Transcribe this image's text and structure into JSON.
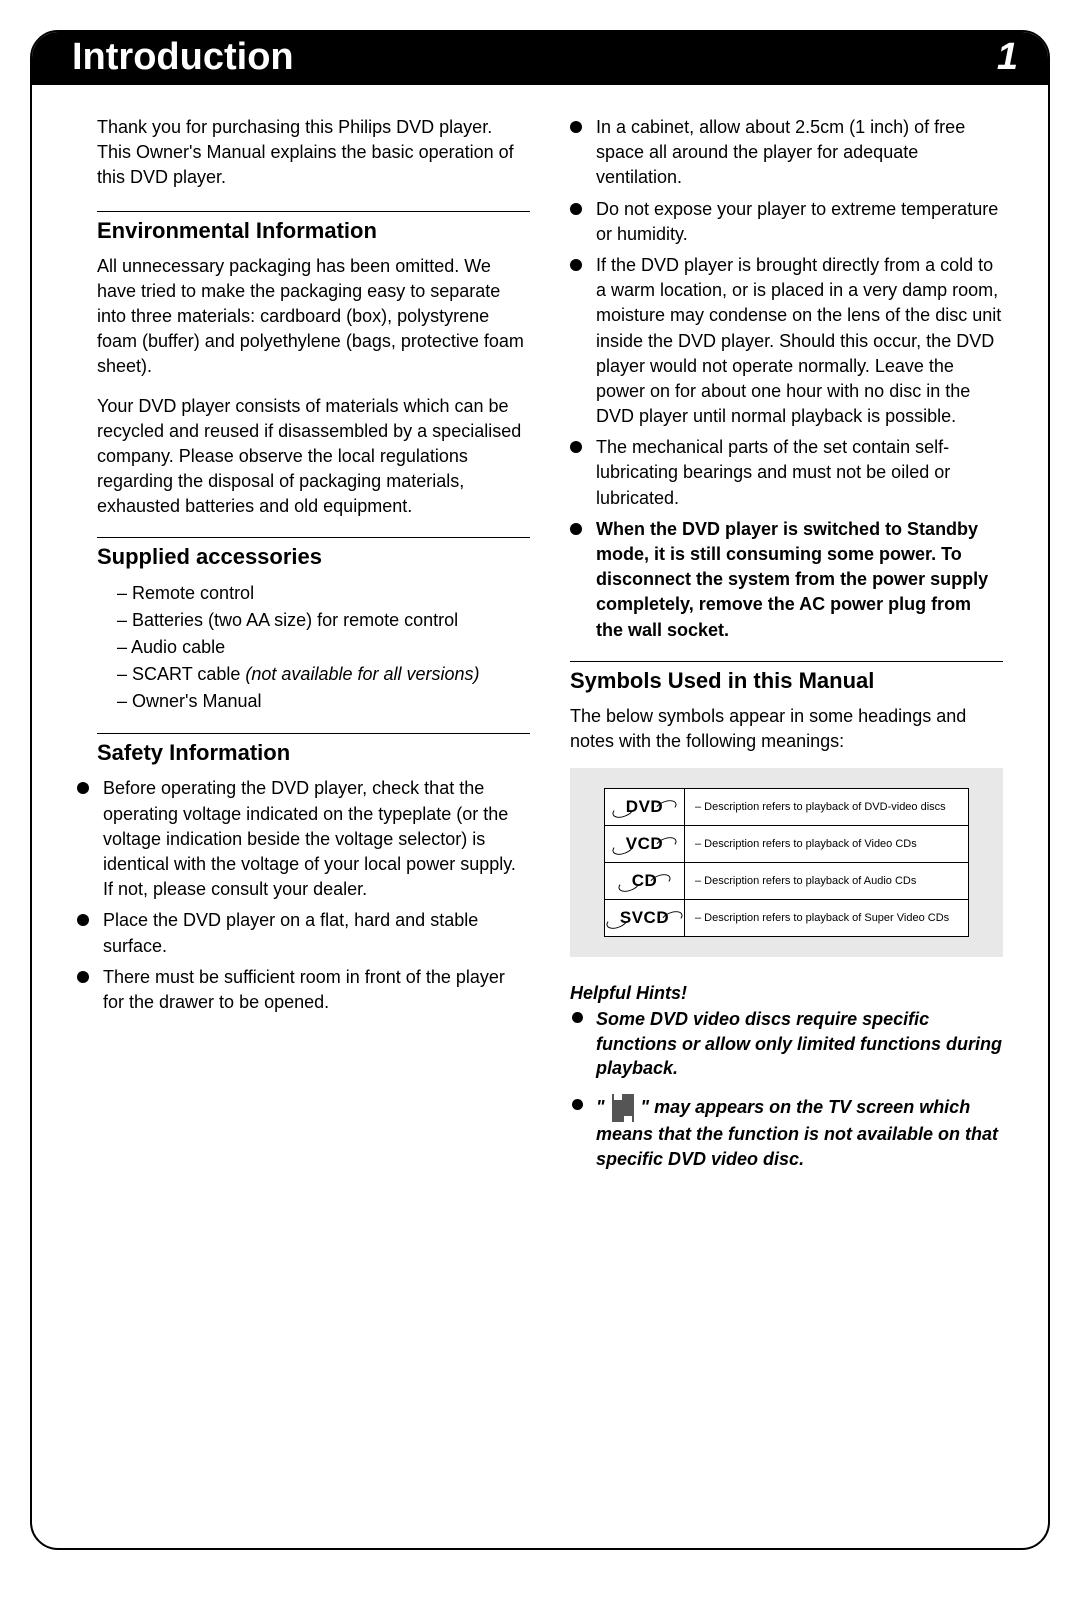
{
  "header": {
    "title": "Introduction",
    "page": "1"
  },
  "left": {
    "intro": "Thank you for purchasing this Philips DVD player. This Owner's Manual explains the basic operation of this DVD player.",
    "env": {
      "heading": "Environmental Information",
      "p1": "All unnecessary packaging has been omitted. We have tried to make the packaging easy to separate into three materials: cardboard (box), polystyrene foam (buffer) and polyethylene (bags, protective foam sheet).",
      "p2": "Your DVD player consists of materials which can be recycled and reused if disassembled by a specialised company. Please observe the local regulations regarding the disposal of packaging materials, exhausted batteries and old equipment."
    },
    "supplied": {
      "heading": "Supplied accessories",
      "items": [
        {
          "text": "Remote control"
        },
        {
          "text": "Batteries (two AA size) for remote control"
        },
        {
          "text": "Audio cable"
        },
        {
          "text": "SCART cable ",
          "note": "(not available for all versions)"
        },
        {
          "text": "Owner's Manual"
        }
      ]
    },
    "safety": {
      "heading": "Safety Information",
      "items": [
        "Before operating the DVD player, check that the operating voltage indicated on the typeplate (or the voltage indication beside the voltage selector) is identical with the voltage of your local power supply. If not, please consult your dealer.",
        "Place the DVD player on a flat, hard and stable surface.",
        "There must be sufficient room in front of the player for the drawer to be opened."
      ]
    }
  },
  "right": {
    "safety_cont": [
      {
        "text": "In a cabinet, allow about 2.5cm (1 inch) of free space all around the player for adequate ventilation."
      },
      {
        "text": "Do not expose your player to extreme temperature or humidity."
      },
      {
        "text": "If the DVD player is brought directly from a cold to a warm location, or is placed in a very damp room, moisture may condense on the lens of the disc unit inside the DVD player. Should this occur, the DVD player would not operate normally. Leave the power on for about one hour with no disc in the DVD player until normal playback is possible."
      },
      {
        "text": "The mechanical parts of the set contain self-lubricating bearings and must not be oiled or lubricated."
      },
      {
        "text": "When the DVD player is switched to Standby mode, it is still consuming some power.  To disconnect the system from the power supply completely, remove the AC power plug from the wall socket.",
        "bold": true
      }
    ],
    "symbols": {
      "heading": "Symbols Used in this Manual",
      "intro": "The below symbols appear in some headings and notes with the following meanings:",
      "rows": [
        {
          "label": "DVD",
          "desc": "– Description refers to playback of DVD-video discs"
        },
        {
          "label": "VCD",
          "desc": "– Description refers to playback of Video CDs"
        },
        {
          "label": "CD",
          "desc": "– Description refers to playback of Audio CDs"
        },
        {
          "label": "SVCD",
          "desc": "– Description refers to playback of Super Video CDs"
        }
      ]
    },
    "hints": {
      "title": "Helpful Hints!",
      "item1": "Some DVD video discs require specific functions or allow only limited functions during playback.",
      "item2a": "\" ",
      "item2b": " \" may appears on the TV screen which means that the function is not available on that specific DVD video disc."
    }
  }
}
